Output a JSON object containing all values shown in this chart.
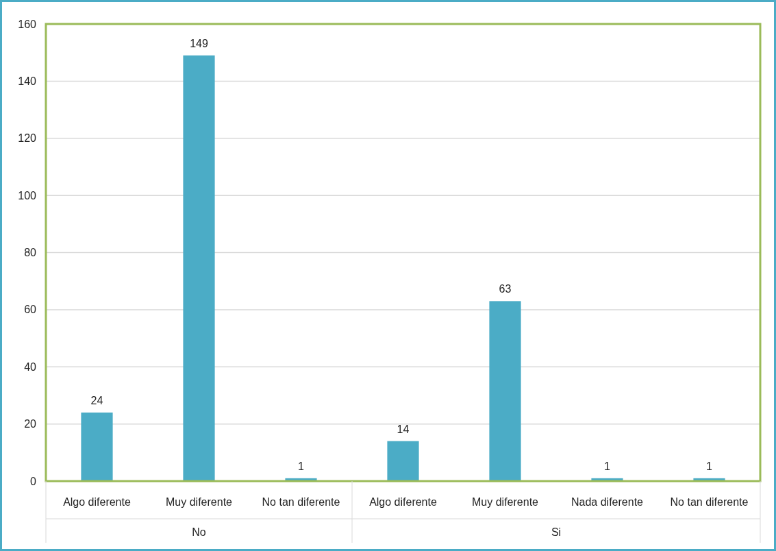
{
  "chart_data": {
    "type": "bar",
    "categories": [
      "Algo diferente",
      "Muy diferente",
      "No tan diferente",
      "Algo diferente",
      "Muy diferente",
      "Nada diferente",
      "No tan diferente"
    ],
    "values": [
      24,
      149,
      1,
      14,
      63,
      1,
      1
    ],
    "color": "#4bacc6",
    "ylim": [
      0,
      160
    ],
    "yticks": [
      0,
      20,
      40,
      60,
      80,
      100,
      120,
      140,
      160
    ],
    "grid": "y",
    "data_labels": true,
    "annotations": [
      "No",
      "Si"
    ]
  }
}
